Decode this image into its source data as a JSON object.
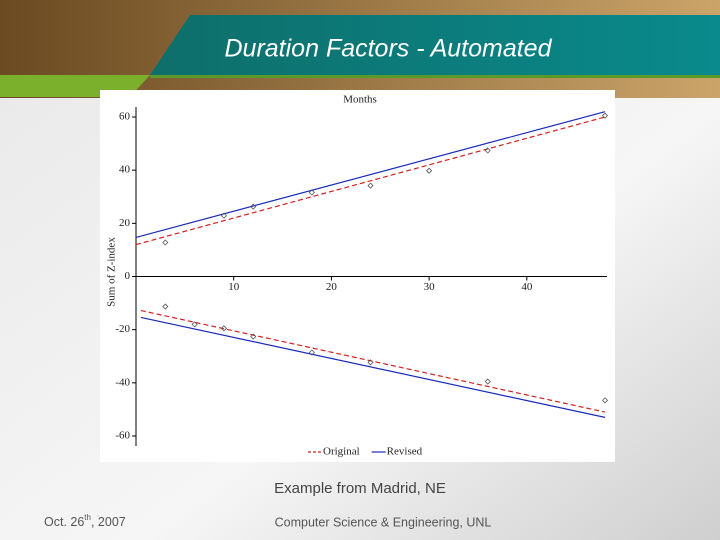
{
  "slide": {
    "title": "Duration Factors - Automated",
    "caption": "Example from Madrid, NE",
    "date_parts": [
      "Oct. 26",
      "th",
      ", 2007"
    ],
    "footer": "Computer Science & Engineering, UNL"
  },
  "chart_data": {
    "type": "scatter-line",
    "x_label": "Months",
    "y_label": "Sum of Z-index",
    "xlim": [
      0,
      48
    ],
    "ylim": [
      -60,
      60
    ],
    "xticks": [
      10,
      20,
      30,
      40
    ],
    "yticks": [
      -60,
      -40,
      -20,
      0,
      20,
      40,
      60
    ],
    "legend": "bottom",
    "series": [
      {
        "name": "Original",
        "color": "#d42020",
        "x": [
          0,
          48,
          null,
          0.5,
          48
        ],
        "values": [
          12,
          60,
          null,
          -12.8,
          -51
        ]
      },
      {
        "name": "Revised",
        "color": "#1a2ab8",
        "x": [
          0,
          48,
          null,
          0.5,
          48
        ],
        "values": [
          14.7,
          62,
          null,
          -15.4,
          -53
        ]
      }
    ],
    "markers": {
      "color": "#555555",
      "x": [
        3,
        9,
        12,
        18,
        24,
        30,
        36,
        48,
        3,
        6,
        9,
        12,
        18,
        24,
        36,
        48
      ],
      "values": [
        12.8,
        22.9,
        26.3,
        31.6,
        34.2,
        39.8,
        47.4,
        60.5,
        -11.3,
        -18,
        -19.5,
        -22.6,
        -28.6,
        -32.3,
        -39.5,
        -46.6
      ]
    }
  }
}
